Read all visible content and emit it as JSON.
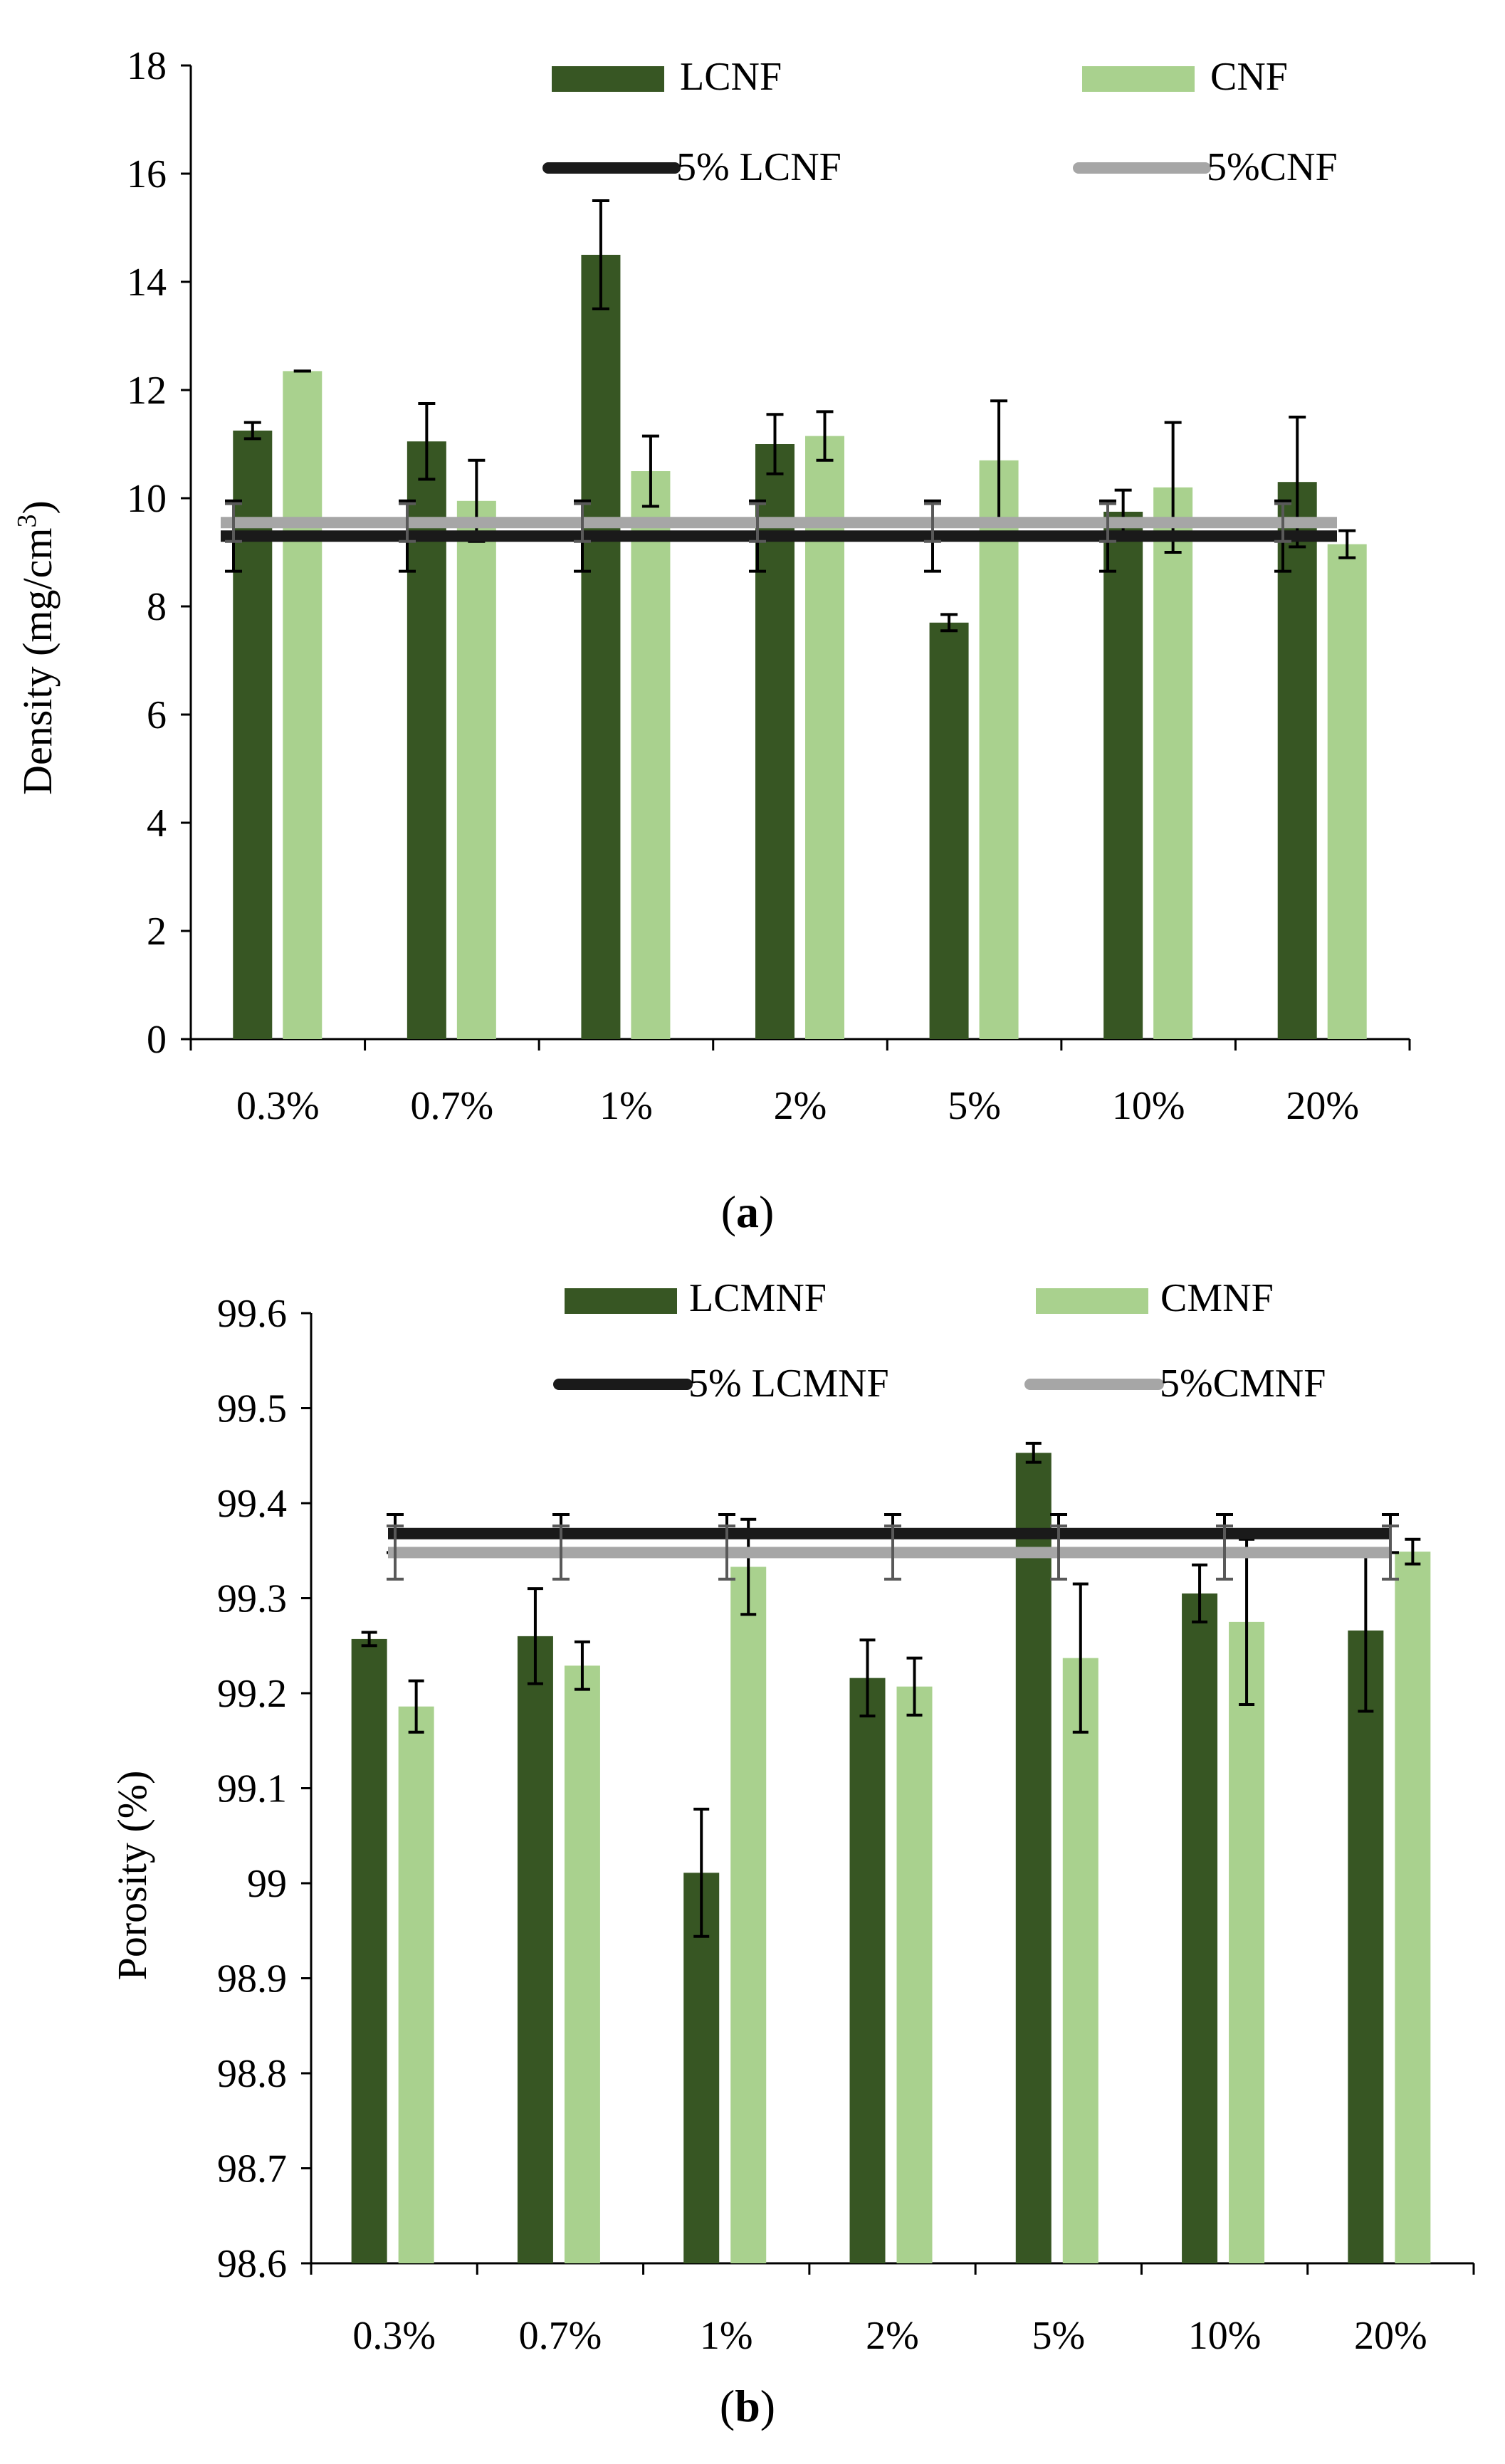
{
  "chart_data": [
    {
      "type": "bar",
      "panel_label": "(a)",
      "panel_letter": "a",
      "ylabel": "Density (mg/cm",
      "ylabel_superscript": "3",
      "ylabel_close": ")",
      "xlabel": "",
      "ylim": [
        0,
        18
      ],
      "yticks": [
        0,
        2,
        4,
        6,
        8,
        10,
        12,
        14,
        16,
        18
      ],
      "ytick_labels": [
        "0",
        "2",
        "4",
        "6",
        "8",
        "10",
        "12",
        "14",
        "16",
        "18"
      ],
      "categories": [
        "0.3%",
        "0.7%",
        "1%",
        "2%",
        "5%",
        "10%",
        "20%"
      ],
      "series": [
        {
          "name": "LCNF",
          "color": "#375623",
          "values": [
            11.25,
            11.05,
            14.5,
            11.0,
            7.7,
            9.75,
            10.3
          ],
          "errors": [
            0.15,
            0.7,
            1.0,
            0.55,
            0.15,
            0.4,
            1.2
          ]
        },
        {
          "name": "CNF",
          "color": "#a9d18e",
          "values": [
            12.35,
            9.95,
            10.5,
            11.15,
            10.7,
            10.2,
            9.15
          ],
          "errors": [
            0.0,
            0.75,
            0.65,
            0.45,
            1.1,
            1.2,
            0.25
          ]
        }
      ],
      "reference_lines": [
        {
          "name": "5% LCNF",
          "color": "#1a1a1a",
          "value": 9.3,
          "error": 0.65
        },
        {
          "name": "5%CNF",
          "color": "#a6a6a6",
          "value": 9.55,
          "error": 0.35
        }
      ],
      "legend": "top, inside plot area"
    },
    {
      "type": "bar",
      "panel_label": "(b)",
      "panel_letter": "b",
      "ylabel": "Porosity (%)",
      "xlabel": "",
      "ylim": [
        98.6,
        99.6
      ],
      "yticks": [
        98.6,
        98.7,
        98.8,
        98.9,
        99.0,
        99.1,
        99.2,
        99.3,
        99.4,
        99.5,
        99.6
      ],
      "ytick_labels": [
        "98.6",
        "98.7",
        "98.8",
        "98.9",
        "99",
        "99.1",
        "99.2",
        "99.3",
        "99.4",
        "99.5",
        "99.6"
      ],
      "categories": [
        "0.3%",
        "0.7%",
        "1%",
        "2%",
        "5%",
        "10%",
        "20%"
      ],
      "series": [
        {
          "name": "LCMNF",
          "color": "#375623",
          "values": [
            99.257,
            99.26,
            99.011,
            99.216,
            99.453,
            99.305,
            99.266
          ],
          "errors": [
            0.007,
            0.05,
            0.067,
            0.04,
            0.01,
            0.03,
            0.085
          ]
        },
        {
          "name": "CMNF",
          "color": "#a9d18e",
          "values": [
            99.186,
            99.229,
            99.333,
            99.207,
            99.237,
            99.275,
            99.349
          ],
          "errors": [
            0.027,
            0.025,
            0.05,
            0.03,
            0.078,
            0.087,
            0.013
          ]
        }
      ],
      "reference_lines": [
        {
          "name": "5% LCMNF",
          "color": "#1a1a1a",
          "value": 99.368,
          "error": 0.02
        },
        {
          "name": "5%CMNF",
          "color": "#a6a6a6",
          "value": 99.348,
          "error": 0.028
        }
      ],
      "legend": "top, inside plot area"
    }
  ]
}
